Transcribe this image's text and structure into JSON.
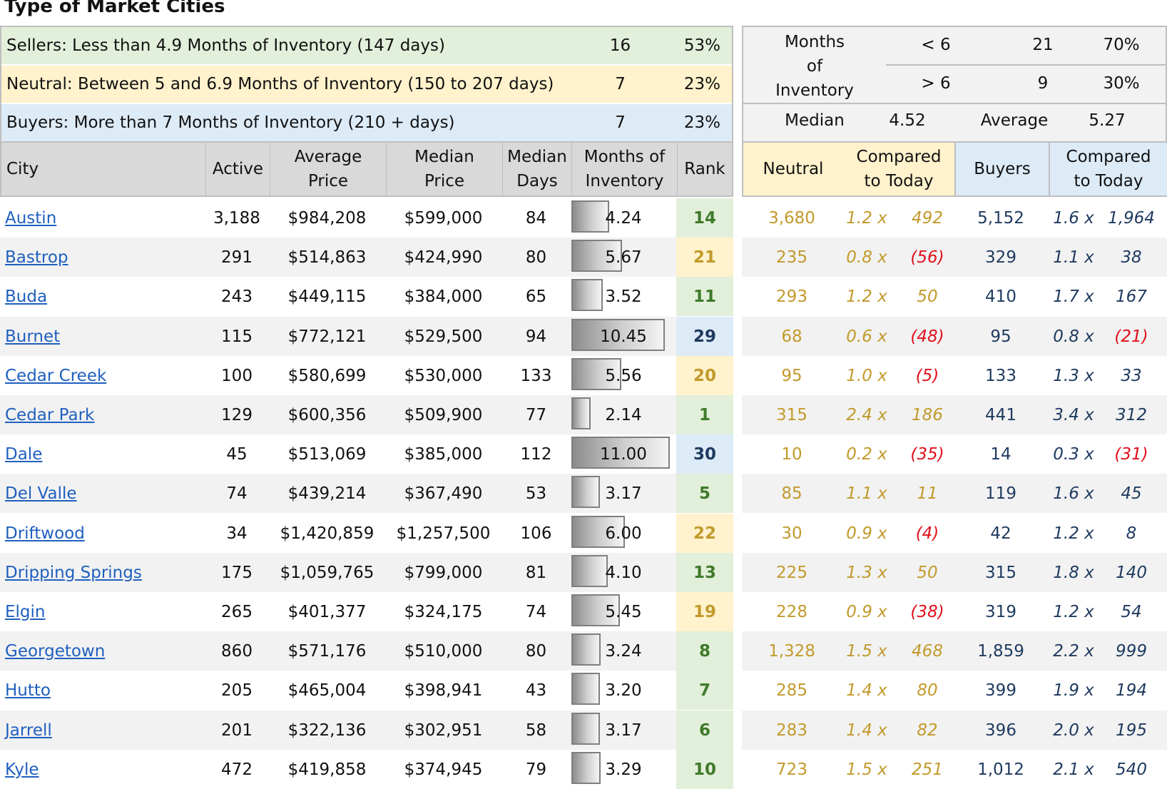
{
  "title": "Type of Market Cities",
  "summary": [
    {
      "label": "Sellers: Less than 4.9 Months of Inventory (147 days)",
      "count": "16",
      "pct": "53%",
      "kind": "sellers"
    },
    {
      "label": "Neutral: Between 5 and 6.9 Months of Inventory (150 to 207 days)",
      "count": "7",
      "pct": "23%",
      "kind": "neutral"
    },
    {
      "label": "Buyers: More than 7 Months of Inventory (210 + days)",
      "count": "7",
      "pct": "23%",
      "kind": "buyers"
    }
  ],
  "stats": {
    "months_label_1": "Months",
    "months_label_2": "of",
    "months_label_3": "Inventory",
    "lt_label": "< 6",
    "lt_count": "21",
    "lt_pct": "70%",
    "gt_label": "> 6",
    "gt_count": "9",
    "gt_pct": "30%",
    "median_label": "Median",
    "median_value": "4.52",
    "average_label": "Average",
    "average_value": "5.27"
  },
  "headers": {
    "city": "City",
    "active": "Active",
    "avg_price_1": "Average",
    "avg_price_2": "Price",
    "med_price_1": "Median",
    "med_price_2": "Price",
    "med_days_1": "Median",
    "med_days_2": "Days",
    "moi_1": "Months of",
    "moi_2": "Inventory",
    "rank": "Rank",
    "neutral": "Neutral",
    "cmp_n_1": "Compared",
    "cmp_n_2": "to Today",
    "buyers": "Buyers",
    "cmp_b_1": "Compared",
    "cmp_b_2": "to Today"
  },
  "colors": {
    "sellers": "#e2efda",
    "neutral": "#fff2cc",
    "buyers": "#ddebf7",
    "sellers_text": "#3f7a2a",
    "neutral_text": "#c29a2c",
    "buyers_text": "#1f3a5f",
    "negative": "#e0101c"
  },
  "rows": [
    {
      "city": "Austin",
      "active": "3,188",
      "avg": "$984,208",
      "med": "$599,000",
      "days": "84",
      "moi": "4.24",
      "moi_value": 4.24,
      "rank": "14",
      "type": "sellers",
      "neutral": "3,680",
      "n_x": "1.2 x",
      "n_diff": "492",
      "n_neg": false,
      "buyers": "5,152",
      "b_x": "1.6 x",
      "b_diff": "1,964",
      "b_neg": false
    },
    {
      "city": "Bastrop",
      "active": "291",
      "avg": "$514,863",
      "med": "$424,990",
      "days": "80",
      "moi": "5.67",
      "moi_value": 5.67,
      "rank": "21",
      "type": "neutral",
      "neutral": "235",
      "n_x": "0.8 x",
      "n_diff": "(56)",
      "n_neg": true,
      "buyers": "329",
      "b_x": "1.1 x",
      "b_diff": "38",
      "b_neg": false
    },
    {
      "city": "Buda",
      "active": "243",
      "avg": "$449,115",
      "med": "$384,000",
      "days": "65",
      "moi": "3.52",
      "moi_value": 3.52,
      "rank": "11",
      "type": "sellers",
      "neutral": "293",
      "n_x": "1.2 x",
      "n_diff": "50",
      "n_neg": false,
      "buyers": "410",
      "b_x": "1.7 x",
      "b_diff": "167",
      "b_neg": false
    },
    {
      "city": "Burnet",
      "active": "115",
      "avg": "$772,121",
      "med": "$529,500",
      "days": "94",
      "moi": "10.45",
      "moi_value": 10.45,
      "rank": "29",
      "type": "buyers",
      "neutral": "68",
      "n_x": "0.6 x",
      "n_diff": "(48)",
      "n_neg": true,
      "buyers": "95",
      "b_x": "0.8 x",
      "b_diff": "(21)",
      "b_neg": true
    },
    {
      "city": "Cedar Creek",
      "active": "100",
      "avg": "$580,699",
      "med": "$530,000",
      "days": "133",
      "moi": "5.56",
      "moi_value": 5.56,
      "rank": "20",
      "type": "neutral",
      "neutral": "95",
      "n_x": "1.0 x",
      "n_diff": "(5)",
      "n_neg": true,
      "buyers": "133",
      "b_x": "1.3 x",
      "b_diff": "33",
      "b_neg": false
    },
    {
      "city": "Cedar Park",
      "active": "129",
      "avg": "$600,356",
      "med": "$509,900",
      "days": "77",
      "moi": "2.14",
      "moi_value": 2.14,
      "rank": "1",
      "type": "sellers",
      "neutral": "315",
      "n_x": "2.4 x",
      "n_diff": "186",
      "n_neg": false,
      "buyers": "441",
      "b_x": "3.4 x",
      "b_diff": "312",
      "b_neg": false
    },
    {
      "city": "Dale",
      "active": "45",
      "avg": "$513,069",
      "med": "$385,000",
      "days": "112",
      "moi": "11.00",
      "moi_value": 11.0,
      "rank": "30",
      "type": "buyers",
      "neutral": "10",
      "n_x": "0.2 x",
      "n_diff": "(35)",
      "n_neg": true,
      "buyers": "14",
      "b_x": "0.3 x",
      "b_diff": "(31)",
      "b_neg": true
    },
    {
      "city": "Del Valle",
      "active": "74",
      "avg": "$439,214",
      "med": "$367,490",
      "days": "53",
      "moi": "3.17",
      "moi_value": 3.17,
      "rank": "5",
      "type": "sellers",
      "neutral": "85",
      "n_x": "1.1 x",
      "n_diff": "11",
      "n_neg": false,
      "buyers": "119",
      "b_x": "1.6 x",
      "b_diff": "45",
      "b_neg": false
    },
    {
      "city": "Driftwood",
      "active": "34",
      "avg": "$1,420,859",
      "med": "$1,257,500",
      "days": "106",
      "moi": "6.00",
      "moi_value": 6.0,
      "rank": "22",
      "type": "neutral",
      "neutral": "30",
      "n_x": "0.9 x",
      "n_diff": "(4)",
      "n_neg": true,
      "buyers": "42",
      "b_x": "1.2 x",
      "b_diff": "8",
      "b_neg": false
    },
    {
      "city": "Dripping Springs",
      "active": "175",
      "avg": "$1,059,765",
      "med": "$799,000",
      "days": "81",
      "moi": "4.10",
      "moi_value": 4.1,
      "rank": "13",
      "type": "sellers",
      "neutral": "225",
      "n_x": "1.3 x",
      "n_diff": "50",
      "n_neg": false,
      "buyers": "315",
      "b_x": "1.8 x",
      "b_diff": "140",
      "b_neg": false
    },
    {
      "city": "Elgin",
      "active": "265",
      "avg": "$401,377",
      "med": "$324,175",
      "days": "74",
      "moi": "5.45",
      "moi_value": 5.45,
      "rank": "19",
      "type": "neutral",
      "neutral": "228",
      "n_x": "0.9 x",
      "n_diff": "(38)",
      "n_neg": true,
      "buyers": "319",
      "b_x": "1.2 x",
      "b_diff": "54",
      "b_neg": false
    },
    {
      "city": "Georgetown",
      "active": "860",
      "avg": "$571,176",
      "med": "$510,000",
      "days": "80",
      "moi": "3.24",
      "moi_value": 3.24,
      "rank": "8",
      "type": "sellers",
      "neutral": "1,328",
      "n_x": "1.5 x",
      "n_diff": "468",
      "n_neg": false,
      "buyers": "1,859",
      "b_x": "2.2 x",
      "b_diff": "999",
      "b_neg": false
    },
    {
      "city": "Hutto",
      "active": "205",
      "avg": "$465,004",
      "med": "$398,941",
      "days": "43",
      "moi": "3.20",
      "moi_value": 3.2,
      "rank": "7",
      "type": "sellers",
      "neutral": "285",
      "n_x": "1.4 x",
      "n_diff": "80",
      "n_neg": false,
      "buyers": "399",
      "b_x": "1.9 x",
      "b_diff": "194",
      "b_neg": false
    },
    {
      "city": "Jarrell",
      "active": "201",
      "avg": "$322,136",
      "med": "$302,951",
      "days": "58",
      "moi": "3.17",
      "moi_value": 3.17,
      "rank": "6",
      "type": "sellers",
      "neutral": "283",
      "n_x": "1.4 x",
      "n_diff": "82",
      "n_neg": false,
      "buyers": "396",
      "b_x": "2.0 x",
      "b_diff": "195",
      "b_neg": false
    },
    {
      "city": "Kyle",
      "active": "472",
      "avg": "$419,858",
      "med": "$374,945",
      "days": "79",
      "moi": "3.29",
      "moi_value": 3.29,
      "rank": "10",
      "type": "sellers",
      "neutral": "723",
      "n_x": "1.5 x",
      "n_diff": "251",
      "n_neg": false,
      "buyers": "1,012",
      "b_x": "2.1 x",
      "b_diff": "540",
      "b_neg": false
    }
  ]
}
